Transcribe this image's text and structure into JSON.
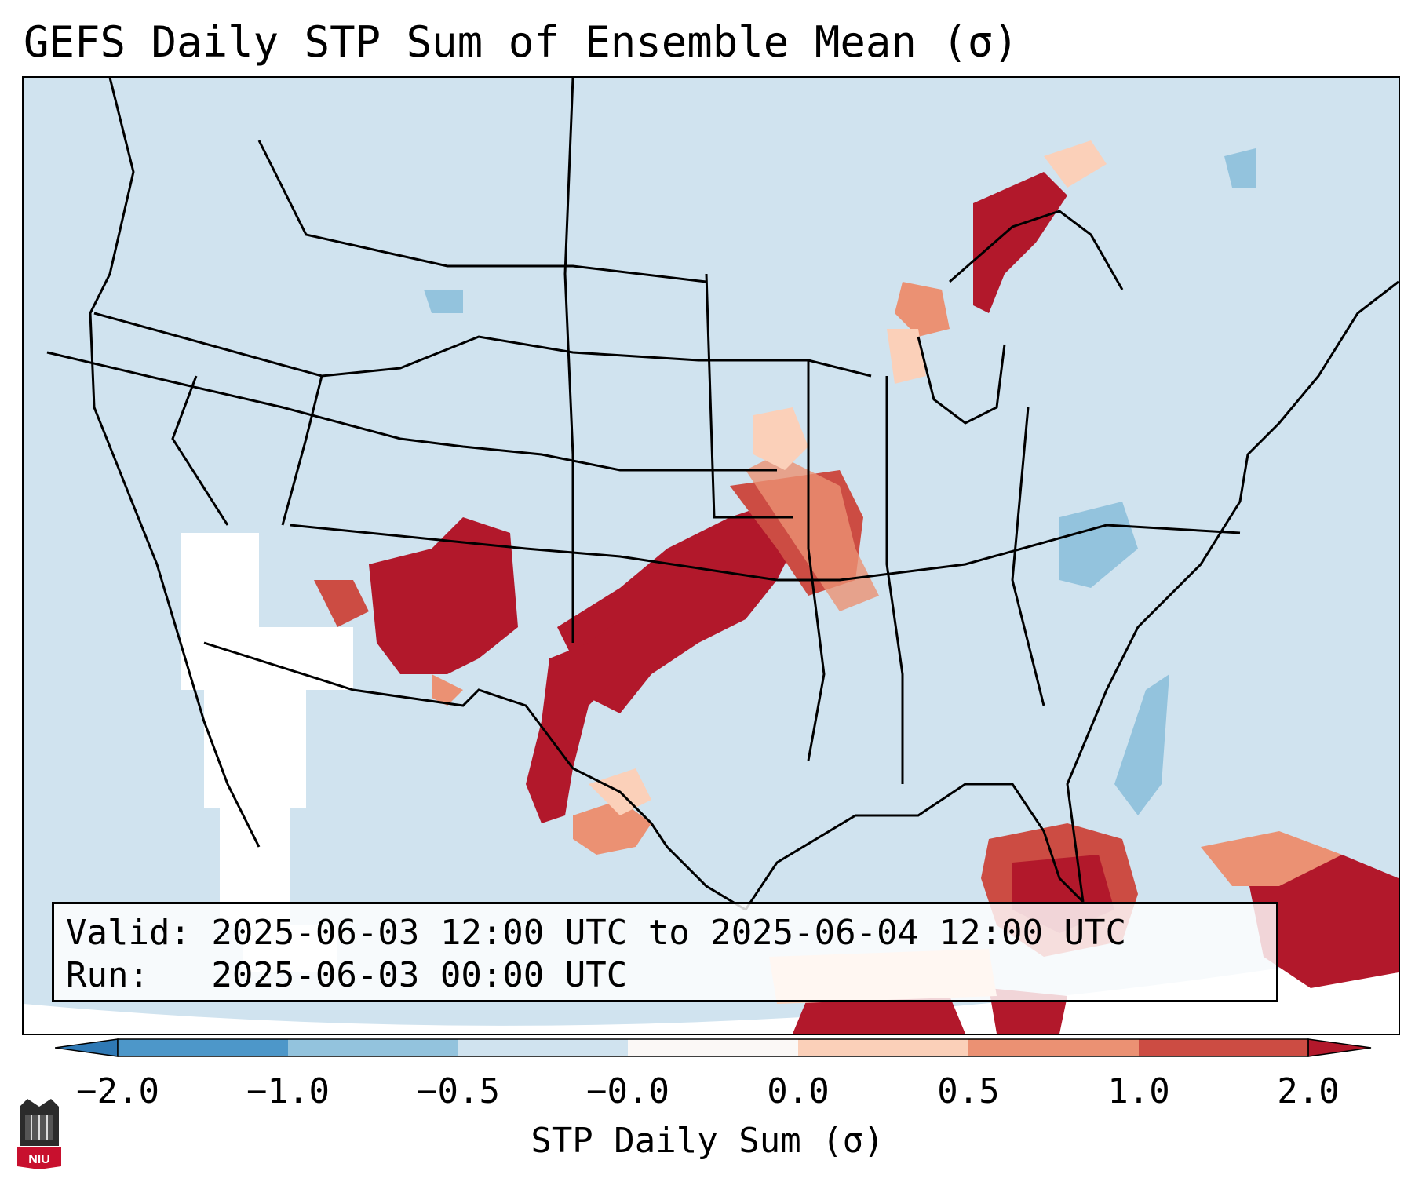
{
  "title": "GEFS Daily STP Sum of Ensemble Mean (σ)",
  "info": {
    "valid_line": "Valid: 2025-06-03 12:00 UTC to 2025-06-04 12:00 UTC",
    "run_line": "Run:   2025-06-03 00:00 UTC"
  },
  "colorbar": {
    "label": "STP Daily Sum (σ)",
    "ticks": [
      "−2.0",
      "−1.0",
      "−0.5",
      "−0.0",
      "0.0",
      "0.5",
      "1.0",
      "2.0"
    ],
    "colors": [
      "#2f79b5",
      "#4d97c9",
      "#93c3dd",
      "#d0e3ef",
      "#fbf8f6",
      "#fbd0b9",
      "#eb9173",
      "#cc4c43",
      "#b2182b"
    ]
  },
  "logo": {
    "text": "NIU"
  },
  "colors": {
    "ocean_background": "#d0e3ef",
    "land_fill": "#d0e3ef",
    "border": "#000000"
  }
}
